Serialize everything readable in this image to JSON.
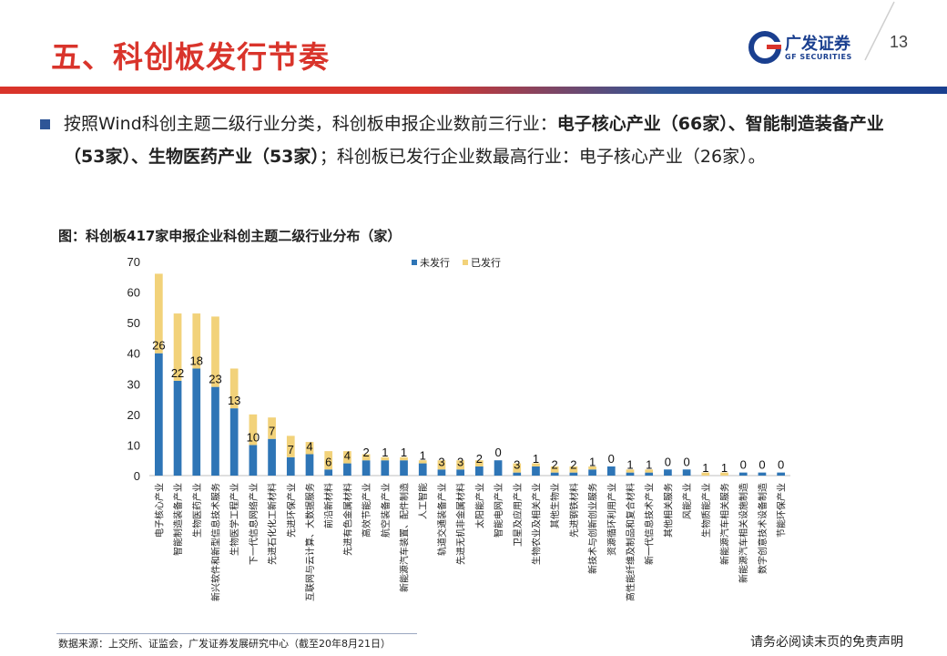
{
  "header": {
    "title": "五、科创板发行节奏",
    "logo_cn": "广发证券",
    "logo_en": "GF SECURITIES",
    "page_number": "13"
  },
  "body": {
    "text_1": "按照Wind科创主题二级行业分类，科创板申报企业数前三行业：",
    "text_2_bold": "电子核心产业（66家）、智能制造装备产业（53家）、生物医药产业（53家）",
    "text_3": "；科创板已发行企业数最高行业：电子核心产业（26家）。"
  },
  "figure_title": "图：科创板417家申报企业科创主题二级行业分布（家）",
  "footer": {
    "source": "数据来源：上交所、证监会，广发证券发展研究中心（截至20年8月21日）",
    "disclaimer": "请务必阅读末页的免责声明"
  },
  "colors": {
    "brand_red": "#d9342b",
    "brand_blue": "#1a3f8f",
    "not_issued": "#2e75b6",
    "issued": "#f2d27a"
  },
  "chart_data": {
    "type": "bar",
    "stacked": true,
    "ylim": [
      0,
      70
    ],
    "yticks": [
      0,
      10,
      20,
      30,
      40,
      50,
      60,
      70
    ],
    "legend_position": "top",
    "categories": [
      "电子核心产业",
      "智能制造装备产业",
      "生物医药产业",
      "新兴软件和新型信息技术服务",
      "生物医学工程产业",
      "下一代信息网络产业",
      "先进石化化工新材料",
      "先进环保产业",
      "互联网与云计算、大数据服务",
      "前沿新材料",
      "先进有色金属材料",
      "高效节能产业",
      "航空装备产业",
      "新能源汽车装置、配件制造",
      "人工智能",
      "轨道交通装备产业",
      "先进无机非金属材料",
      "太阳能产业",
      "智能电网产业",
      "卫星及应用产业",
      "生物农业及相关产业",
      "其他生物业",
      "先进钢铁材料",
      "新技术与创新创业服务",
      "资源循环利用产业",
      "高性能纤维及制品和复合材料",
      "新一代信息技术产业",
      "其他相关服务",
      "风能产业",
      "生物质能产业",
      "新能源汽车相关服务",
      "新能源汽车相关设施制造",
      "数字创意技术设备制造",
      "节能环保产业"
    ],
    "series": [
      {
        "name": "未发行",
        "values": [
          40,
          31,
          35,
          29,
          22,
          10,
          12,
          6,
          7,
          2,
          4,
          5,
          5,
          5,
          4,
          2,
          2,
          3,
          5,
          1,
          3,
          1,
          1,
          2,
          3,
          1,
          1,
          2,
          2,
          0,
          0,
          1,
          1,
          1
        ]
      },
      {
        "name": "已发行",
        "values": [
          26,
          22,
          18,
          23,
          13,
          10,
          7,
          7,
          4,
          6,
          4,
          2,
          1,
          1,
          1,
          3,
          3,
          2,
          0,
          3,
          1,
          2,
          2,
          1,
          0,
          1,
          1,
          0,
          0,
          1,
          1,
          0,
          0,
          0
        ]
      }
    ]
  }
}
